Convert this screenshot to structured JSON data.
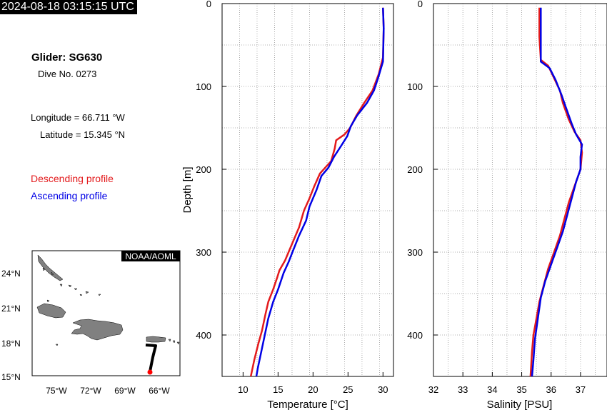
{
  "header": {
    "timestamp": "2024-08-18 03:15:15 UTC",
    "glider_title": "Glider: SG630",
    "dive_no": "Dive No. 0273",
    "longitude": "Longitude = 66.711 °W",
    "latitude": "Latitude = 15.345 °N"
  },
  "legend": {
    "descending_label": "Descending profile",
    "ascending_label": "Ascending profile",
    "descending_color": "#e31a1c",
    "ascending_color": "#0000e6"
  },
  "map": {
    "credit": "NOAA/AOML",
    "lat_ticks": [
      "24°N",
      "21°N",
      "18°N",
      "15°N"
    ],
    "lon_ticks": [
      "75°W",
      "72°W",
      "69°W",
      "66°W"
    ],
    "land_color": "#808080",
    "track_color": "#000000",
    "position_color": "#ff0000"
  },
  "chart_data": [
    {
      "type": "line",
      "xlabel": "Temperature [°C]",
      "ylabel": "Depth [m]",
      "xlim": [
        7,
        31.5
      ],
      "ylim": [
        450,
        0
      ],
      "xticks": [
        10,
        15,
        20,
        25,
        30
      ],
      "yticks": [
        0,
        100,
        200,
        300,
        400
      ],
      "grid": true,
      "series": [
        {
          "profile": "descending",
          "points": [
            [
              30.0,
              5
            ],
            [
              30.1,
              30
            ],
            [
              30.0,
              65
            ],
            [
              29.4,
              85
            ],
            [
              28.5,
              105
            ],
            [
              27.3,
              120
            ],
            [
              26.2,
              135
            ],
            [
              25.3,
              150
            ],
            [
              24.5,
              158
            ],
            [
              23.3,
              165
            ],
            [
              23.1,
              175
            ],
            [
              22.6,
              190
            ],
            [
              21.0,
              205
            ],
            [
              20.2,
              220
            ],
            [
              19.5,
              235
            ],
            [
              18.7,
              250
            ],
            [
              18.0,
              270
            ],
            [
              17.0,
              290
            ],
            [
              16.0,
              310
            ],
            [
              15.2,
              322
            ],
            [
              14.9,
              330
            ],
            [
              14.3,
              345
            ],
            [
              13.6,
              360
            ],
            [
              13.2,
              375
            ],
            [
              12.7,
              395
            ],
            [
              12.2,
              410
            ],
            [
              11.6,
              430
            ],
            [
              11.1,
              450
            ]
          ]
        },
        {
          "profile": "ascending",
          "points": [
            [
              30.0,
              5
            ],
            [
              30.1,
              30
            ],
            [
              30.0,
              70
            ],
            [
              29.3,
              90
            ],
            [
              28.7,
              105
            ],
            [
              27.7,
              120
            ],
            [
              26.3,
              135
            ],
            [
              25.4,
              148
            ],
            [
              24.9,
              160
            ],
            [
              24.0,
              172
            ],
            [
              23.0,
              185
            ],
            [
              22.2,
              198
            ],
            [
              21.2,
              208
            ],
            [
              20.5,
              225
            ],
            [
              19.5,
              245
            ],
            [
              19.0,
              262
            ],
            [
              18.0,
              280
            ],
            [
              17.2,
              297
            ],
            [
              16.5,
              312
            ],
            [
              15.8,
              325
            ],
            [
              15.0,
              345
            ],
            [
              14.3,
              360
            ],
            [
              13.6,
              380
            ],
            [
              13.1,
              400
            ],
            [
              12.6,
              420
            ],
            [
              12.1,
              440
            ],
            [
              11.9,
              450
            ]
          ]
        }
      ]
    },
    {
      "type": "line",
      "xlabel": "Salinity [PSU]",
      "ylabel": "",
      "xlim": [
        32,
        37.9
      ],
      "ylim": [
        450,
        0
      ],
      "xticks": [
        32,
        33,
        34,
        35,
        36,
        37
      ],
      "yticks": [
        0,
        100,
        200,
        300,
        400
      ],
      "grid": true,
      "series": [
        {
          "profile": "descending",
          "points": [
            [
              35.6,
              5
            ],
            [
              35.6,
              40
            ],
            [
              35.65,
              68
            ],
            [
              35.9,
              75
            ],
            [
              36.1,
              90
            ],
            [
              36.3,
              105
            ],
            [
              36.4,
              120
            ],
            [
              36.6,
              140
            ],
            [
              36.8,
              155
            ],
            [
              37.0,
              165
            ],
            [
              37.05,
              180
            ],
            [
              37.0,
              200
            ],
            [
              36.8,
              220
            ],
            [
              36.6,
              240
            ],
            [
              36.45,
              260
            ],
            [
              36.3,
              280
            ],
            [
              36.1,
              300
            ],
            [
              35.9,
              320
            ],
            [
              35.75,
              340
            ],
            [
              35.6,
              360
            ],
            [
              35.5,
              380
            ],
            [
              35.4,
              400
            ],
            [
              35.35,
              420
            ],
            [
              35.3,
              450
            ]
          ]
        },
        {
          "profile": "ascending",
          "points": [
            [
              35.65,
              5
            ],
            [
              35.65,
              40
            ],
            [
              35.65,
              70
            ],
            [
              35.95,
              78
            ],
            [
              36.15,
              92
            ],
            [
              36.35,
              110
            ],
            [
              36.5,
              125
            ],
            [
              36.7,
              145
            ],
            [
              36.85,
              158
            ],
            [
              37.05,
              170
            ],
            [
              37.0,
              185
            ],
            [
              37.0,
              200
            ],
            [
              36.85,
              215
            ],
            [
              36.7,
              235
            ],
            [
              36.55,
              255
            ],
            [
              36.4,
              275
            ],
            [
              36.2,
              295
            ],
            [
              36.0,
              315
            ],
            [
              35.8,
              335
            ],
            [
              35.65,
              355
            ],
            [
              35.55,
              380
            ],
            [
              35.45,
              405
            ],
            [
              35.4,
              430
            ],
            [
              35.35,
              450
            ]
          ]
        }
      ]
    }
  ]
}
